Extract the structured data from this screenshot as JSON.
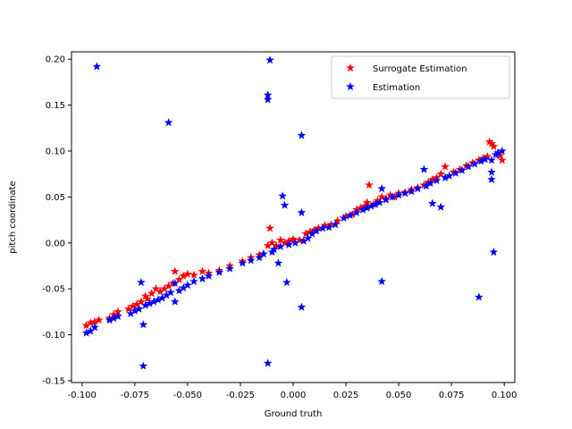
{
  "chart_data": {
    "type": "scatter",
    "title": "",
    "xlabel": "Ground truth",
    "ylabel": "pitch coordinate",
    "xlim": [
      -0.105,
      0.105
    ],
    "ylim": [
      -0.152,
      0.208
    ],
    "x_ticks": [
      "-0.100",
      "-0.075",
      "-0.050",
      "-0.025",
      "0.000",
      "0.025",
      "0.050",
      "0.075",
      "0.100"
    ],
    "y_ticks": [
      "-0.15",
      "-0.10",
      "-0.05",
      "0.00",
      "0.05",
      "0.10",
      "0.15",
      "0.20"
    ],
    "grid": false,
    "legend_position": "top-right",
    "series": [
      {
        "name": "Surrogate Estimation",
        "color": "#ff0000",
        "marker": "star",
        "points": [
          [
            -0.098,
            -0.09
          ],
          [
            -0.096,
            -0.087
          ],
          [
            -0.094,
            -0.086
          ],
          [
            -0.092,
            -0.084
          ],
          [
            -0.087,
            -0.082
          ],
          [
            -0.085,
            -0.078
          ],
          [
            -0.083,
            -0.075
          ],
          [
            -0.078,
            -0.072
          ],
          [
            -0.076,
            -0.069
          ],
          [
            -0.074,
            -0.067
          ],
          [
            -0.072,
            -0.064
          ],
          [
            -0.07,
            -0.058
          ],
          [
            -0.069,
            -0.061
          ],
          [
            -0.067,
            -0.055
          ],
          [
            -0.065,
            -0.05
          ],
          [
            -0.063,
            -0.053
          ],
          [
            -0.061,
            -0.05
          ],
          [
            -0.059,
            -0.047
          ],
          [
            -0.057,
            -0.044
          ],
          [
            -0.056,
            -0.031
          ],
          [
            -0.054,
            -0.04
          ],
          [
            -0.052,
            -0.036
          ],
          [
            -0.05,
            -0.034
          ],
          [
            -0.047,
            -0.035
          ],
          [
            -0.043,
            -0.031
          ],
          [
            -0.04,
            -0.033
          ],
          [
            -0.035,
            -0.03
          ],
          [
            -0.03,
            -0.025
          ],
          [
            -0.024,
            -0.02
          ],
          [
            -0.02,
            -0.016
          ],
          [
            -0.016,
            -0.013
          ],
          [
            -0.014,
            -0.012
          ],
          [
            -0.012,
            -0.003
          ],
          [
            -0.011,
            0.016
          ],
          [
            -0.01,
            0.0
          ],
          [
            -0.008,
            -0.003
          ],
          [
            -0.006,
            0.003
          ],
          [
            -0.004,
            0.0
          ],
          [
            -0.002,
            0.002
          ],
          [
            0.0,
            0.004
          ],
          [
            0.003,
            0.003
          ],
          [
            0.006,
            0.01
          ],
          [
            0.008,
            0.012
          ],
          [
            0.01,
            0.014
          ],
          [
            0.012,
            0.016
          ],
          [
            0.015,
            0.019
          ],
          [
            0.018,
            0.02
          ],
          [
            0.021,
            0.024
          ],
          [
            0.025,
            0.029
          ],
          [
            0.028,
            0.031
          ],
          [
            0.03,
            0.036
          ],
          [
            0.032,
            0.038
          ],
          [
            0.034,
            0.04
          ],
          [
            0.035,
            0.044
          ],
          [
            0.036,
            0.063
          ],
          [
            0.038,
            0.042
          ],
          [
            0.04,
            0.046
          ],
          [
            0.042,
            0.05
          ],
          [
            0.044,
            0.048
          ],
          [
            0.046,
            0.052
          ],
          [
            0.048,
            0.05
          ],
          [
            0.05,
            0.054
          ],
          [
            0.053,
            0.055
          ],
          [
            0.056,
            0.058
          ],
          [
            0.059,
            0.06
          ],
          [
            0.062,
            0.063
          ],
          [
            0.064,
            0.066
          ],
          [
            0.066,
            0.069
          ],
          [
            0.068,
            0.071
          ],
          [
            0.07,
            0.075
          ],
          [
            0.072,
            0.083
          ],
          [
            0.076,
            0.077
          ],
          [
            0.079,
            0.08
          ],
          [
            0.082,
            0.084
          ],
          [
            0.085,
            0.087
          ],
          [
            0.088,
            0.09
          ],
          [
            0.09,
            0.092
          ],
          [
            0.092,
            0.094
          ],
          [
            0.093,
            0.11
          ],
          [
            0.094,
            0.108
          ],
          [
            0.095,
            0.105
          ],
          [
            0.096,
            0.096
          ],
          [
            0.098,
            0.095
          ],
          [
            0.099,
            0.09
          ]
        ]
      },
      {
        "name": "Estimation",
        "color": "#0000ff",
        "marker": "star",
        "points": [
          [
            -0.098,
            -0.098
          ],
          [
            -0.096,
            -0.096
          ],
          [
            -0.094,
            -0.092
          ],
          [
            -0.093,
            0.192
          ],
          [
            -0.087,
            -0.084
          ],
          [
            -0.085,
            -0.082
          ],
          [
            -0.083,
            -0.08
          ],
          [
            -0.077,
            -0.077
          ],
          [
            -0.075,
            -0.074
          ],
          [
            -0.073,
            -0.072
          ],
          [
            -0.072,
            -0.043
          ],
          [
            -0.071,
            -0.134
          ],
          [
            -0.071,
            -0.089
          ],
          [
            -0.07,
            -0.068
          ],
          [
            -0.068,
            -0.066
          ],
          [
            -0.066,
            -0.064
          ],
          [
            -0.064,
            -0.062
          ],
          [
            -0.062,
            -0.06
          ],
          [
            -0.06,
            -0.057
          ],
          [
            -0.059,
            0.131
          ],
          [
            -0.058,
            -0.054
          ],
          [
            -0.056,
            -0.044
          ],
          [
            -0.056,
            -0.064
          ],
          [
            -0.054,
            -0.052
          ],
          [
            -0.052,
            -0.049
          ],
          [
            -0.05,
            -0.046
          ],
          [
            -0.047,
            -0.042
          ],
          [
            -0.043,
            -0.039
          ],
          [
            -0.04,
            -0.036
          ],
          [
            -0.035,
            -0.032
          ],
          [
            -0.03,
            -0.028
          ],
          [
            -0.024,
            -0.022
          ],
          [
            -0.02,
            -0.019
          ],
          [
            -0.016,
            -0.016
          ],
          [
            -0.014,
            -0.012
          ],
          [
            -0.012,
            0.161
          ],
          [
            -0.012,
            0.156
          ],
          [
            -0.012,
            -0.131
          ],
          [
            -0.011,
            0.199
          ],
          [
            -0.01,
            -0.01
          ],
          [
            -0.009,
            -0.007
          ],
          [
            -0.007,
            -0.022
          ],
          [
            -0.006,
            -0.004
          ],
          [
            -0.005,
            0.051
          ],
          [
            -0.004,
            0.041
          ],
          [
            -0.003,
            -0.043
          ],
          [
            -0.002,
            -0.002
          ],
          [
            0.001,
            0.0
          ],
          [
            0.004,
            0.033
          ],
          [
            0.004,
            0.117
          ],
          [
            0.004,
            -0.07
          ],
          [
            0.005,
            0.002
          ],
          [
            0.007,
            0.005
          ],
          [
            0.009,
            0.01
          ],
          [
            0.011,
            0.013
          ],
          [
            0.014,
            0.016
          ],
          [
            0.017,
            0.017
          ],
          [
            0.02,
            0.02
          ],
          [
            0.024,
            0.027
          ],
          [
            0.027,
            0.03
          ],
          [
            0.03,
            0.033
          ],
          [
            0.033,
            0.036
          ],
          [
            0.035,
            0.038
          ],
          [
            0.037,
            0.04
          ],
          [
            0.039,
            0.042
          ],
          [
            0.041,
            0.044
          ],
          [
            0.042,
            -0.042
          ],
          [
            0.042,
            0.059
          ],
          [
            0.044,
            0.047
          ],
          [
            0.047,
            0.05
          ],
          [
            0.05,
            0.052
          ],
          [
            0.053,
            0.054
          ],
          [
            0.056,
            0.056
          ],
          [
            0.059,
            0.059
          ],
          [
            0.062,
            0.08
          ],
          [
            0.063,
            0.062
          ],
          [
            0.065,
            0.065
          ],
          [
            0.066,
            0.043
          ],
          [
            0.068,
            0.068
          ],
          [
            0.07,
            0.039
          ],
          [
            0.072,
            0.071
          ],
          [
            0.074,
            0.073
          ],
          [
            0.077,
            0.076
          ],
          [
            0.08,
            0.079
          ],
          [
            0.083,
            0.083
          ],
          [
            0.086,
            0.086
          ],
          [
            0.088,
            -0.059
          ],
          [
            0.089,
            0.089
          ],
          [
            0.091,
            0.091
          ],
          [
            0.094,
            0.069
          ],
          [
            0.094,
            0.077
          ],
          [
            0.095,
            -0.01
          ],
          [
            0.096,
            0.096
          ],
          [
            0.097,
            0.098
          ],
          [
            0.099,
            0.1
          ],
          [
            0.094,
            0.09
          ]
        ]
      }
    ]
  }
}
